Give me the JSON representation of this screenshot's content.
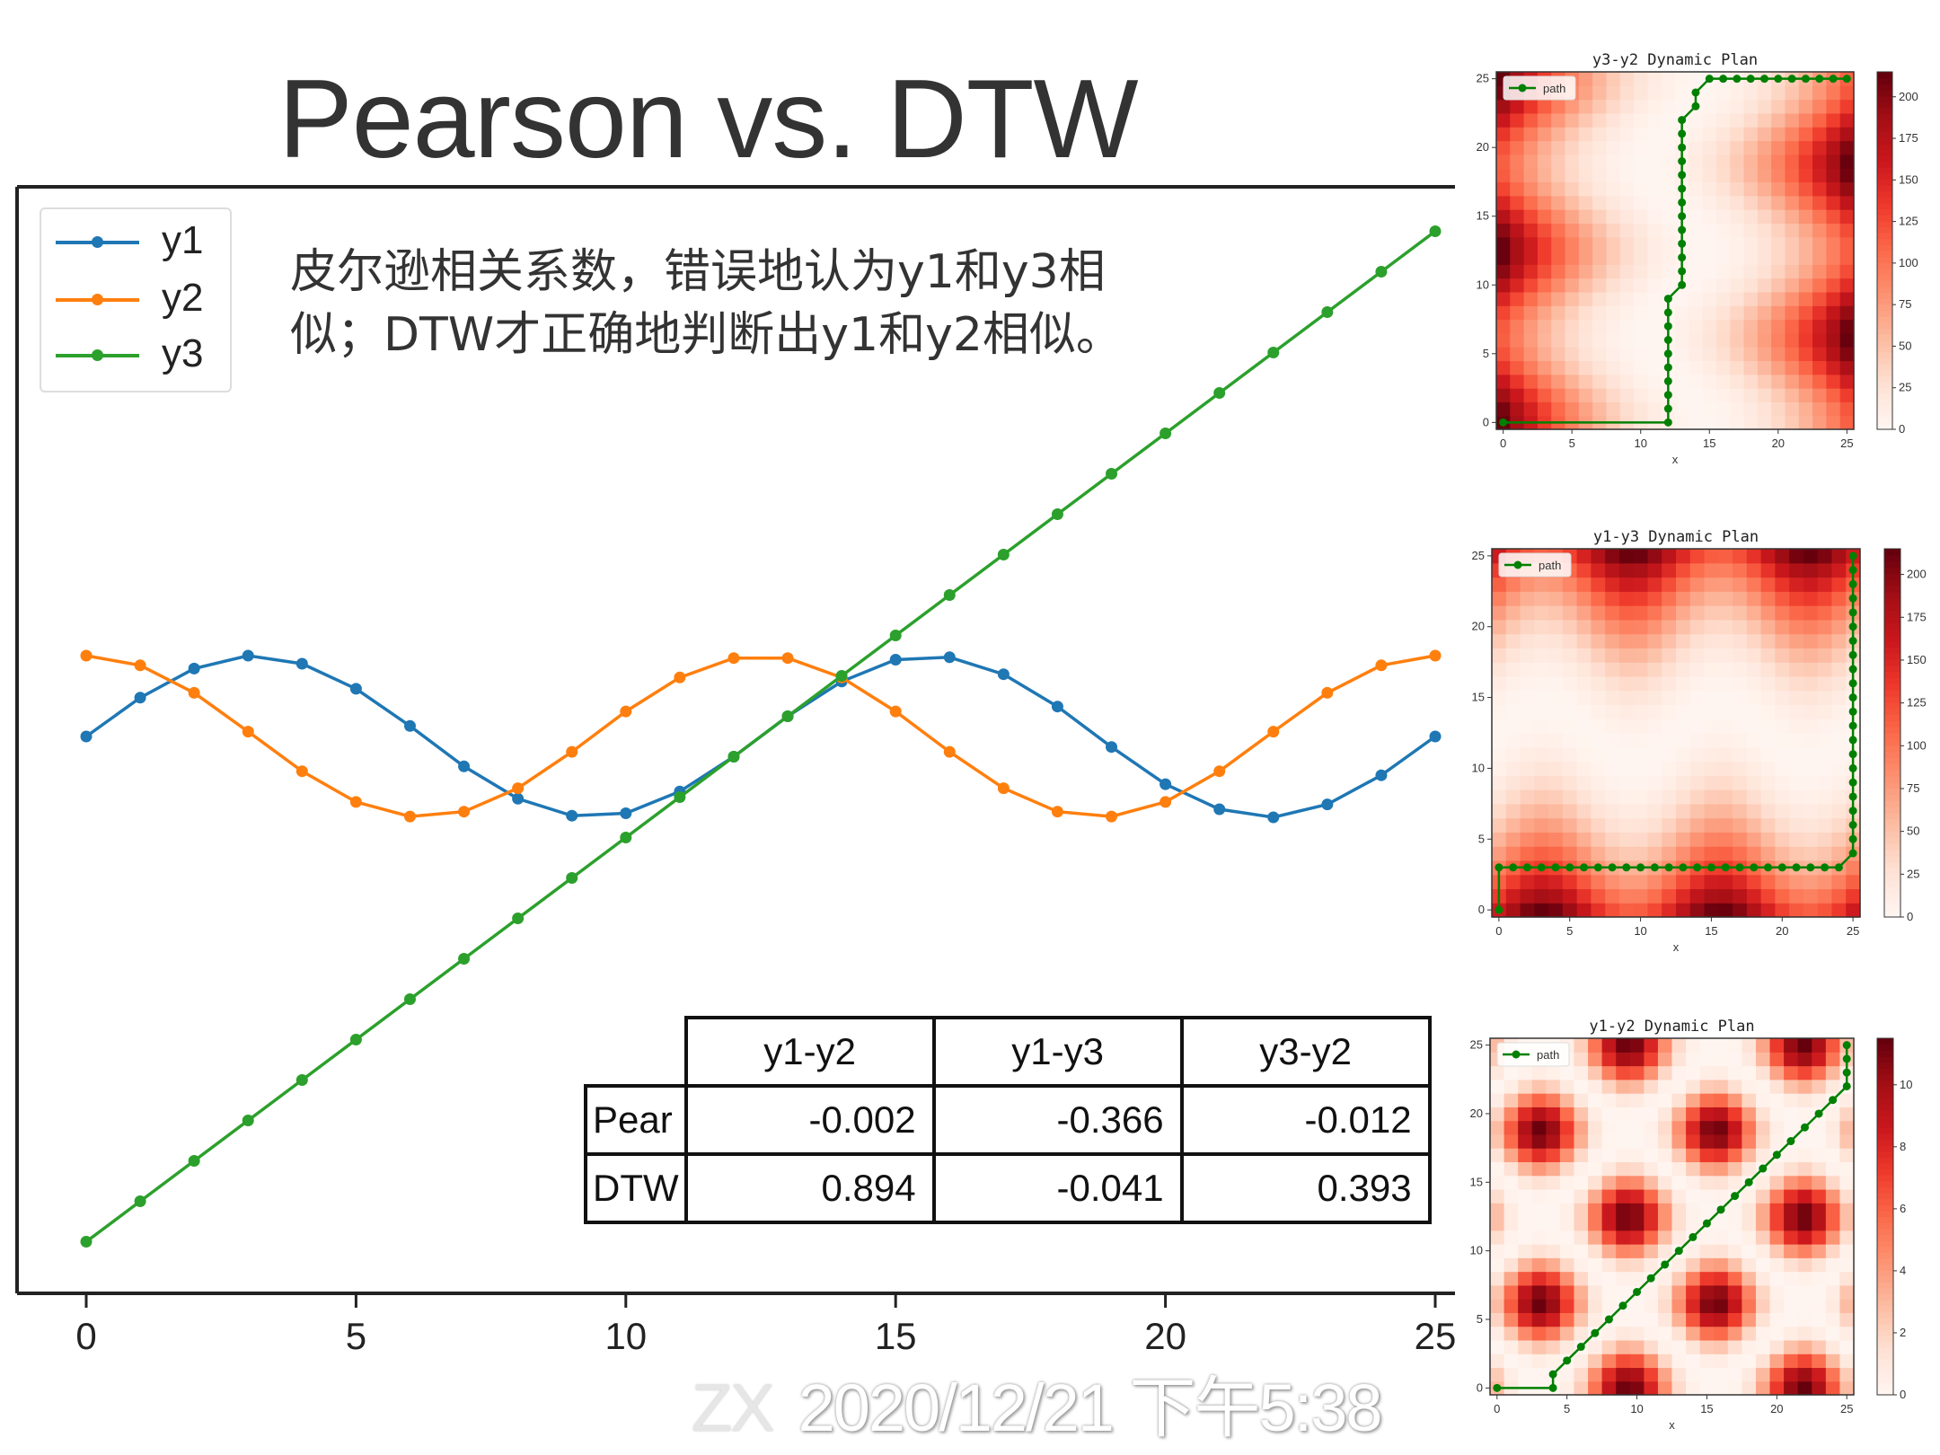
{
  "title": "Pearson vs.  DTW",
  "annotation": {
    "line1": "皮尔逊相关系数，错误地认为y1和y3相",
    "line2": "似；DTW才正确地判断出y1和y2相似。"
  },
  "watermark": {
    "prefix": "ZX",
    "text": "2020/12/21 下午5:38"
  },
  "colors": {
    "y1": "#1f77b4",
    "y2": "#ff7f0e",
    "y3": "#2ca02c",
    "path": "#008000",
    "cmap": "Reds"
  },
  "chart_data": [
    {
      "type": "line",
      "x": [
        0,
        1,
        2,
        3,
        4,
        5,
        6,
        7,
        8,
        9,
        10,
        11,
        12,
        13,
        14,
        15,
        16,
        17,
        18,
        19,
        20,
        21,
        22,
        23,
        24,
        25
      ],
      "xlim": [
        -0.5,
        25.5
      ],
      "xticks": [
        "0",
        "5",
        "10",
        "15",
        "20",
        "25"
      ],
      "grid": false,
      "legend": "top-left",
      "series": [
        {
          "name": "y1",
          "values": [
            0,
            0.48,
            0.84,
            1.0,
            0.9,
            0.59,
            0.13,
            -0.37,
            -0.77,
            -0.98,
            -0.95,
            -0.68,
            -0.25,
            0.25,
            0.68,
            0.95,
            0.98,
            0.77,
            0.37,
            -0.13,
            -0.59,
            -0.9,
            -1.0,
            -0.84,
            -0.48,
            0
          ]
        },
        {
          "name": "y2",
          "values": [
            1,
            0.88,
            0.54,
            0.06,
            -0.43,
            -0.81,
            -0.99,
            -0.93,
            -0.64,
            -0.19,
            0.31,
            0.73,
            0.97,
            0.97,
            0.73,
            0.31,
            -0.19,
            -0.64,
            -0.93,
            -0.99,
            -0.81,
            -0.43,
            0.06,
            0.54,
            0.88,
            1
          ]
        },
        {
          "name": "y3",
          "values": [
            -6.25,
            -5.75,
            -5.25,
            -4.75,
            -4.25,
            -3.75,
            -3.25,
            -2.75,
            -2.25,
            -1.75,
            -1.25,
            -0.75,
            -0.25,
            0.25,
            0.75,
            1.25,
            1.75,
            2.25,
            2.75,
            3.25,
            3.75,
            4.25,
            4.75,
            5.25,
            5.75,
            6.25
          ]
        }
      ]
    },
    {
      "type": "table",
      "columns": [
        "y1-y2",
        "y1-y3",
        "y3-y2"
      ],
      "rows": [
        {
          "label": "Pear",
          "values": [
            "-0.002",
            "-0.366",
            "-0.012"
          ]
        },
        {
          "label": "DTW",
          "values": [
            "0.894",
            "-0.041",
            "0.393"
          ]
        }
      ]
    },
    {
      "type": "heatmap",
      "title": "y3-y2 Dynamic Plan",
      "xlabel": "x",
      "x_series": "y3",
      "y_series": "y2",
      "ticks": [
        "0",
        "5",
        "10",
        "15",
        "20",
        "25"
      ],
      "colorbar_ticks": [
        "0",
        "25",
        "50",
        "75",
        "100",
        "125",
        "150",
        "175",
        "200"
      ],
      "colorbar_range": [
        0,
        215
      ],
      "legend_label": "path",
      "path": [
        [
          0,
          0
        ],
        [
          12,
          0
        ],
        [
          12,
          1
        ],
        [
          12,
          2
        ],
        [
          12,
          3
        ],
        [
          12,
          4
        ],
        [
          12,
          5
        ],
        [
          12,
          6
        ],
        [
          12,
          7
        ],
        [
          12,
          8
        ],
        [
          12,
          9
        ],
        [
          13,
          10
        ],
        [
          13,
          11
        ],
        [
          13,
          12
        ],
        [
          13,
          13
        ],
        [
          13,
          14
        ],
        [
          13,
          15
        ],
        [
          13,
          16
        ],
        [
          13,
          17
        ],
        [
          13,
          18
        ],
        [
          13,
          19
        ],
        [
          13,
          20
        ],
        [
          13,
          21
        ],
        [
          13,
          22
        ],
        [
          14,
          23
        ],
        [
          14,
          24
        ],
        [
          15,
          25
        ],
        [
          16,
          25
        ],
        [
          17,
          25
        ],
        [
          18,
          25
        ],
        [
          19,
          25
        ],
        [
          20,
          25
        ],
        [
          21,
          25
        ],
        [
          22,
          25
        ],
        [
          23,
          25
        ],
        [
          24,
          25
        ],
        [
          25,
          25
        ]
      ]
    },
    {
      "type": "heatmap",
      "title": "y1-y3 Dynamic Plan",
      "xlabel": "x",
      "x_series": "y1",
      "y_series": "y3",
      "ticks": [
        "0",
        "5",
        "10",
        "15",
        "20",
        "25"
      ],
      "colorbar_ticks": [
        "0",
        "25",
        "50",
        "75",
        "100",
        "125",
        "150",
        "175",
        "200"
      ],
      "colorbar_range": [
        0,
        215
      ],
      "legend_label": "path",
      "path": [
        [
          0,
          0
        ],
        [
          0,
          3
        ],
        [
          1,
          3
        ],
        [
          2,
          3
        ],
        [
          3,
          3
        ],
        [
          4,
          3
        ],
        [
          5,
          3
        ],
        [
          6,
          3
        ],
        [
          7,
          3
        ],
        [
          8,
          3
        ],
        [
          9,
          3
        ],
        [
          10,
          3
        ],
        [
          11,
          3
        ],
        [
          12,
          3
        ],
        [
          13,
          3
        ],
        [
          14,
          3
        ],
        [
          15,
          3
        ],
        [
          16,
          3
        ],
        [
          17,
          3
        ],
        [
          18,
          3
        ],
        [
          19,
          3
        ],
        [
          20,
          3
        ],
        [
          21,
          3
        ],
        [
          22,
          3
        ],
        [
          23,
          3
        ],
        [
          24,
          3
        ],
        [
          25,
          4
        ],
        [
          25,
          5
        ],
        [
          25,
          6
        ],
        [
          25,
          7
        ],
        [
          25,
          8
        ],
        [
          25,
          9
        ],
        [
          25,
          10
        ],
        [
          25,
          11
        ],
        [
          25,
          12
        ],
        [
          25,
          13
        ],
        [
          25,
          14
        ],
        [
          25,
          15
        ],
        [
          25,
          16
        ],
        [
          25,
          17
        ],
        [
          25,
          18
        ],
        [
          25,
          19
        ],
        [
          25,
          20
        ],
        [
          25,
          21
        ],
        [
          25,
          22
        ],
        [
          25,
          23
        ],
        [
          25,
          24
        ],
        [
          25,
          25
        ]
      ]
    },
    {
      "type": "heatmap",
      "title": "y1-y2 Dynamic Plan",
      "xlabel": "x",
      "x_series": "y1",
      "y_series": "y2",
      "ticks": [
        "0",
        "5",
        "10",
        "15",
        "20",
        "25"
      ],
      "colorbar_ticks": [
        "0",
        "2",
        "4",
        "6",
        "8",
        "10"
      ],
      "colorbar_range": [
        0,
        11.5
      ],
      "legend_label": "path",
      "path": [
        [
          0,
          0
        ],
        [
          4,
          0
        ],
        [
          4,
          1
        ],
        [
          5,
          2
        ],
        [
          6,
          3
        ],
        [
          7,
          4
        ],
        [
          8,
          5
        ],
        [
          9,
          6
        ],
        [
          10,
          7
        ],
        [
          11,
          8
        ],
        [
          12,
          9
        ],
        [
          13,
          10
        ],
        [
          14,
          11
        ],
        [
          15,
          12
        ],
        [
          16,
          13
        ],
        [
          17,
          14
        ],
        [
          18,
          15
        ],
        [
          19,
          16
        ],
        [
          20,
          17
        ],
        [
          21,
          18
        ],
        [
          22,
          19
        ],
        [
          23,
          20
        ],
        [
          24,
          21
        ],
        [
          25,
          22
        ],
        [
          25,
          23
        ],
        [
          25,
          24
        ],
        [
          25,
          25
        ]
      ]
    }
  ]
}
